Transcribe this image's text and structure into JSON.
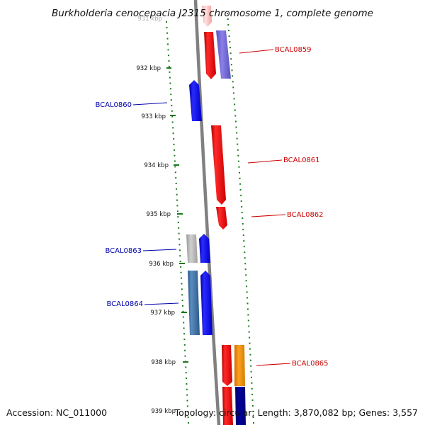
{
  "title": "Burkholderia cenocepacia J2315 chromosome 1, complete genome",
  "ticks": [
    {
      "label": "931 kbp",
      "faded": true
    },
    {
      "label": "932 kbp"
    },
    {
      "label": "933 kbp"
    },
    {
      "label": "934 kbp"
    },
    {
      "label": "935 kbp"
    },
    {
      "label": "936 kbp"
    },
    {
      "label": "937 kbp"
    },
    {
      "label": "938 kbp"
    },
    {
      "label": "939 kbp"
    }
  ],
  "genes": {
    "bcal0859": "BCAL0859",
    "bcal0860": "BCAL0860",
    "bcal0861": "BCAL0861",
    "bcal0862": "BCAL0862",
    "bcal0863": "BCAL0863",
    "bcal0864": "BCAL0864",
    "bcal0865": "BCAL0865"
  },
  "footer": {
    "accession": "Accession: NC_011000",
    "stats": "Topology: circular; Length: 3,870,082 bp; Genes: 3,557"
  },
  "colors": {
    "forward_label": "#cc0000",
    "reverse_label": "#0000aa",
    "gc_dots": "#1a7a1a",
    "backbone": "#808080"
  }
}
